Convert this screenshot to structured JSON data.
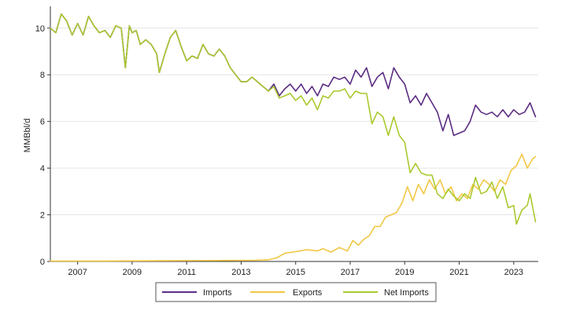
{
  "chart_data": {
    "type": "line",
    "title": "",
    "xlabel": "",
    "ylabel": "MMBbl/d",
    "xlim": [
      2006.0,
      2023.9
    ],
    "ylim": [
      0,
      10.8
    ],
    "y_ticks": [
      0,
      2,
      4,
      6,
      8,
      10
    ],
    "x_ticks": [
      2007,
      2009,
      2011,
      2013,
      2015,
      2017,
      2019,
      2021,
      2023
    ],
    "grid": true,
    "legend_position": "bottom-center",
    "colors": {
      "Imports": "#5b2c83",
      "Exports": "#f2c744",
      "Net Imports": "#a9c92e"
    },
    "series": [
      {
        "name": "Imports",
        "points": [
          [
            2006.0,
            10.0
          ],
          [
            2006.2,
            9.8
          ],
          [
            2006.4,
            10.6
          ],
          [
            2006.6,
            10.3
          ],
          [
            2006.8,
            9.7
          ],
          [
            2007.0,
            10.2
          ],
          [
            2007.2,
            9.7
          ],
          [
            2007.4,
            10.5
          ],
          [
            2007.6,
            10.1
          ],
          [
            2007.8,
            9.8
          ],
          [
            2008.0,
            9.9
          ],
          [
            2008.2,
            9.6
          ],
          [
            2008.4,
            10.1
          ],
          [
            2008.6,
            10.0
          ],
          [
            2008.75,
            8.3
          ],
          [
            2008.9,
            10.1
          ],
          [
            2009.0,
            9.8
          ],
          [
            2009.15,
            9.9
          ],
          [
            2009.3,
            9.3
          ],
          [
            2009.5,
            9.5
          ],
          [
            2009.7,
            9.3
          ],
          [
            2009.9,
            8.9
          ],
          [
            2010.0,
            8.1
          ],
          [
            2010.2,
            8.9
          ],
          [
            2010.4,
            9.6
          ],
          [
            2010.6,
            9.9
          ],
          [
            2010.8,
            9.2
          ],
          [
            2011.0,
            8.6
          ],
          [
            2011.2,
            8.8
          ],
          [
            2011.4,
            8.7
          ],
          [
            2011.6,
            9.3
          ],
          [
            2011.8,
            8.9
          ],
          [
            2012.0,
            8.8
          ],
          [
            2012.2,
            9.1
          ],
          [
            2012.4,
            8.8
          ],
          [
            2012.6,
            8.3
          ],
          [
            2012.8,
            8.0
          ],
          [
            2013.0,
            7.7
          ],
          [
            2013.2,
            7.7
          ],
          [
            2013.4,
            7.9
          ],
          [
            2013.6,
            7.7
          ],
          [
            2013.8,
            7.5
          ],
          [
            2014.0,
            7.3
          ],
          [
            2014.2,
            7.6
          ],
          [
            2014.4,
            7.1
          ],
          [
            2014.6,
            7.4
          ],
          [
            2014.8,
            7.6
          ],
          [
            2015.0,
            7.3
          ],
          [
            2015.2,
            7.6
          ],
          [
            2015.4,
            7.2
          ],
          [
            2015.6,
            7.5
          ],
          [
            2015.8,
            7.1
          ],
          [
            2016.0,
            7.6
          ],
          [
            2016.2,
            7.5
          ],
          [
            2016.4,
            7.9
          ],
          [
            2016.6,
            7.8
          ],
          [
            2016.8,
            7.9
          ],
          [
            2017.0,
            7.6
          ],
          [
            2017.2,
            8.2
          ],
          [
            2017.4,
            7.9
          ],
          [
            2017.6,
            8.3
          ],
          [
            2017.8,
            7.5
          ],
          [
            2018.0,
            7.9
          ],
          [
            2018.2,
            8.1
          ],
          [
            2018.4,
            7.4
          ],
          [
            2018.6,
            8.3
          ],
          [
            2018.8,
            7.9
          ],
          [
            2019.0,
            7.6
          ],
          [
            2019.2,
            6.8
          ],
          [
            2019.4,
            7.1
          ],
          [
            2019.6,
            6.7
          ],
          [
            2019.8,
            7.2
          ],
          [
            2020.0,
            6.8
          ],
          [
            2020.2,
            6.4
          ],
          [
            2020.4,
            5.6
          ],
          [
            2020.6,
            6.3
          ],
          [
            2020.8,
            5.4
          ],
          [
            2021.0,
            5.5
          ],
          [
            2021.2,
            5.6
          ],
          [
            2021.4,
            6.0
          ],
          [
            2021.6,
            6.7
          ],
          [
            2021.8,
            6.4
          ],
          [
            2022.0,
            6.3
          ],
          [
            2022.2,
            6.4
          ],
          [
            2022.4,
            6.2
          ],
          [
            2022.6,
            6.5
          ],
          [
            2022.8,
            6.2
          ],
          [
            2023.0,
            6.5
          ],
          [
            2023.2,
            6.3
          ],
          [
            2023.4,
            6.4
          ],
          [
            2023.6,
            6.8
          ],
          [
            2023.8,
            6.2
          ]
        ]
      },
      {
        "name": "Exports",
        "points": [
          [
            2006.0,
            0.02
          ],
          [
            2008.0,
            0.02
          ],
          [
            2010.0,
            0.03
          ],
          [
            2012.0,
            0.04
          ],
          [
            2013.5,
            0.05
          ],
          [
            2014.0,
            0.07
          ],
          [
            2014.3,
            0.15
          ],
          [
            2014.6,
            0.35
          ],
          [
            2015.0,
            0.42
          ],
          [
            2015.4,
            0.5
          ],
          [
            2015.8,
            0.45
          ],
          [
            2016.0,
            0.55
          ],
          [
            2016.3,
            0.4
          ],
          [
            2016.6,
            0.6
          ],
          [
            2016.9,
            0.45
          ],
          [
            2017.1,
            0.9
          ],
          [
            2017.3,
            0.7
          ],
          [
            2017.5,
            0.95
          ],
          [
            2017.7,
            1.1
          ],
          [
            2017.9,
            1.5
          ],
          [
            2018.1,
            1.5
          ],
          [
            2018.3,
            1.9
          ],
          [
            2018.5,
            2.0
          ],
          [
            2018.7,
            2.1
          ],
          [
            2018.9,
            2.5
          ],
          [
            2019.1,
            3.2
          ],
          [
            2019.3,
            2.6
          ],
          [
            2019.5,
            3.3
          ],
          [
            2019.7,
            2.9
          ],
          [
            2019.9,
            3.5
          ],
          [
            2020.1,
            3.1
          ],
          [
            2020.3,
            3.5
          ],
          [
            2020.5,
            2.9
          ],
          [
            2020.7,
            3.2
          ],
          [
            2020.9,
            2.6
          ],
          [
            2021.1,
            2.9
          ],
          [
            2021.3,
            2.7
          ],
          [
            2021.5,
            3.3
          ],
          [
            2021.7,
            3.1
          ],
          [
            2021.9,
            3.5
          ],
          [
            2022.1,
            3.3
          ],
          [
            2022.3,
            3.0
          ],
          [
            2022.5,
            3.5
          ],
          [
            2022.7,
            3.3
          ],
          [
            2022.9,
            3.9
          ],
          [
            2023.1,
            4.1
          ],
          [
            2023.3,
            4.6
          ],
          [
            2023.5,
            4.0
          ],
          [
            2023.7,
            4.4
          ],
          [
            2023.8,
            4.5
          ]
        ]
      },
      {
        "name": "Net Imports",
        "points": [
          [
            2006.0,
            10.0
          ],
          [
            2006.2,
            9.8
          ],
          [
            2006.4,
            10.6
          ],
          [
            2006.6,
            10.3
          ],
          [
            2006.8,
            9.7
          ],
          [
            2007.0,
            10.2
          ],
          [
            2007.2,
            9.7
          ],
          [
            2007.4,
            10.5
          ],
          [
            2007.6,
            10.1
          ],
          [
            2007.8,
            9.8
          ],
          [
            2008.0,
            9.9
          ],
          [
            2008.2,
            9.6
          ],
          [
            2008.4,
            10.1
          ],
          [
            2008.6,
            10.0
          ],
          [
            2008.75,
            8.3
          ],
          [
            2008.9,
            10.1
          ],
          [
            2009.0,
            9.8
          ],
          [
            2009.15,
            9.9
          ],
          [
            2009.3,
            9.3
          ],
          [
            2009.5,
            9.5
          ],
          [
            2009.7,
            9.3
          ],
          [
            2009.9,
            8.9
          ],
          [
            2010.0,
            8.1
          ],
          [
            2010.2,
            8.9
          ],
          [
            2010.4,
            9.6
          ],
          [
            2010.6,
            9.9
          ],
          [
            2010.8,
            9.2
          ],
          [
            2011.0,
            8.6
          ],
          [
            2011.2,
            8.8
          ],
          [
            2011.4,
            8.7
          ],
          [
            2011.6,
            9.3
          ],
          [
            2011.8,
            8.9
          ],
          [
            2012.0,
            8.8
          ],
          [
            2012.2,
            9.1
          ],
          [
            2012.4,
            8.8
          ],
          [
            2012.6,
            8.3
          ],
          [
            2012.8,
            8.0
          ],
          [
            2013.0,
            7.7
          ],
          [
            2013.2,
            7.7
          ],
          [
            2013.4,
            7.9
          ],
          [
            2013.6,
            7.7
          ],
          [
            2013.8,
            7.5
          ],
          [
            2014.0,
            7.3
          ],
          [
            2014.2,
            7.5
          ],
          [
            2014.4,
            7.0
          ],
          [
            2014.6,
            7.1
          ],
          [
            2014.8,
            7.2
          ],
          [
            2015.0,
            6.9
          ],
          [
            2015.2,
            7.1
          ],
          [
            2015.4,
            6.7
          ],
          [
            2015.6,
            7.0
          ],
          [
            2015.8,
            6.5
          ],
          [
            2016.0,
            7.1
          ],
          [
            2016.2,
            7.0
          ],
          [
            2016.4,
            7.3
          ],
          [
            2016.6,
            7.3
          ],
          [
            2016.8,
            7.4
          ],
          [
            2017.0,
            7.0
          ],
          [
            2017.2,
            7.3
          ],
          [
            2017.4,
            7.2
          ],
          [
            2017.6,
            7.2
          ],
          [
            2017.8,
            5.9
          ],
          [
            2018.0,
            6.4
          ],
          [
            2018.2,
            6.2
          ],
          [
            2018.4,
            5.4
          ],
          [
            2018.6,
            6.2
          ],
          [
            2018.8,
            5.4
          ],
          [
            2019.0,
            5.1
          ],
          [
            2019.2,
            3.8
          ],
          [
            2019.4,
            4.2
          ],
          [
            2019.6,
            3.8
          ],
          [
            2019.8,
            3.7
          ],
          [
            2020.0,
            3.7
          ],
          [
            2020.2,
            2.9
          ],
          [
            2020.4,
            2.7
          ],
          [
            2020.6,
            3.1
          ],
          [
            2020.8,
            2.8
          ],
          [
            2021.0,
            2.6
          ],
          [
            2021.2,
            2.9
          ],
          [
            2021.4,
            2.7
          ],
          [
            2021.6,
            3.6
          ],
          [
            2021.8,
            2.9
          ],
          [
            2022.0,
            3.0
          ],
          [
            2022.2,
            3.4
          ],
          [
            2022.4,
            2.7
          ],
          [
            2022.6,
            3.2
          ],
          [
            2022.8,
            2.3
          ],
          [
            2023.0,
            2.4
          ],
          [
            2023.1,
            1.6
          ],
          [
            2023.3,
            2.2
          ],
          [
            2023.5,
            2.4
          ],
          [
            2023.6,
            2.9
          ],
          [
            2023.8,
            1.7
          ]
        ]
      }
    ]
  }
}
